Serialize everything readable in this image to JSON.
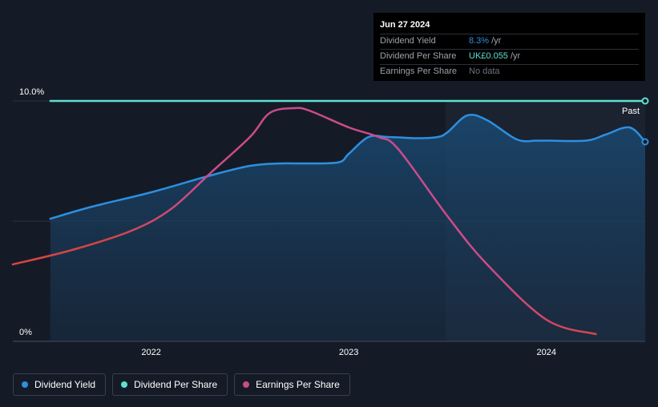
{
  "chart_data": {
    "type": "line",
    "x_range": [
      2021.3,
      2024.5
    ],
    "y_range": [
      0,
      10
    ],
    "ytick_labels": [
      "10.0%",
      "0%"
    ],
    "xticks": [
      {
        "x": 2022,
        "label": "2022"
      },
      {
        "x": 2023,
        "label": "2023"
      },
      {
        "x": 2024,
        "label": "2024"
      }
    ],
    "past_label": "Past",
    "forecast_start": 2023.49,
    "series": [
      {
        "name": "Dividend Yield",
        "color": "#2d8fe0",
        "x": [
          2021.49,
          2021.7,
          2022.0,
          2022.3,
          2022.5,
          2022.65,
          2022.8,
          2022.95,
          2023.0,
          2023.1,
          2023.2,
          2023.35,
          2023.45,
          2023.5,
          2023.6,
          2023.7,
          2023.85,
          2023.95,
          2024.0,
          2024.2,
          2024.3,
          2024.42,
          2024.5
        ],
        "y": [
          5.1,
          5.6,
          6.2,
          6.9,
          7.3,
          7.4,
          7.4,
          7.45,
          7.8,
          8.5,
          8.5,
          8.45,
          8.5,
          8.7,
          9.4,
          9.2,
          8.4,
          8.35,
          8.35,
          8.35,
          8.6,
          8.9,
          8.3
        ]
      },
      {
        "name": "Dividend Per Share",
        "color": "#5ee0d2",
        "x": [
          2021.49,
          2024.5
        ],
        "y": [
          10.0,
          10.0
        ]
      },
      {
        "name": "Earnings Per Share",
        "color": "#cc4b8a",
        "x": [
          2021.3,
          2021.6,
          2021.9,
          2022.1,
          2022.3,
          2022.5,
          2022.6,
          2022.72,
          2022.8,
          2023.0,
          2023.15,
          2023.25,
          2023.5,
          2023.7,
          2024.0,
          2024.25
        ],
        "y": [
          3.2,
          3.8,
          4.6,
          5.5,
          7.0,
          8.5,
          9.5,
          9.7,
          9.6,
          8.9,
          8.5,
          8.0,
          5.2,
          3.2,
          0.9,
          0.3
        ]
      }
    ]
  },
  "tooltip": {
    "date": "Jun 27 2024",
    "rows": [
      {
        "label": "Dividend Yield",
        "value": "8.3%",
        "unit": "/yr",
        "color": "#2d8fe0"
      },
      {
        "label": "Dividend Per Share",
        "value": "UK£0.055",
        "unit": "/yr",
        "color": "#5ee0d2"
      },
      {
        "label": "Earnings Per Share",
        "value": "No data",
        "unit": "",
        "color": "#6b7280"
      }
    ]
  },
  "legend": [
    {
      "label": "Dividend Yield",
      "color": "#2d8fe0"
    },
    {
      "label": "Dividend Per Share",
      "color": "#5ee0d2"
    },
    {
      "label": "Earnings Per Share",
      "color": "#cc4b8a"
    }
  ]
}
